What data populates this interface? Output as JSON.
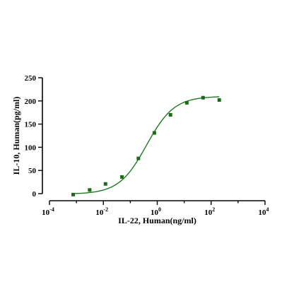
{
  "chart_data": {
    "type": "scatter",
    "xlabel": "IL-22, Human(ng/ml)",
    "ylabel": "IL-10, Human(pg/ml)",
    "x_scale": "log",
    "xlim": [
      0.0001,
      10000
    ],
    "ylim": [
      0,
      250
    ],
    "grid": false,
    "x_ticks": [
      {
        "base": "10",
        "exp": "-4",
        "value": 0.0001
      },
      {
        "base": "10",
        "exp": "-2",
        "value": 0.01
      },
      {
        "base": "10",
        "exp": "0",
        "value": 1
      },
      {
        "base": "10",
        "exp": "2",
        "value": 100
      },
      {
        "base": "10",
        "exp": "4",
        "value": 10000
      }
    ],
    "y_ticks": [
      "0",
      "50",
      "100",
      "150",
      "200",
      "250"
    ],
    "colors": {
      "points": "#1a6b1a",
      "curve": "#1f7a1f",
      "axes": "#000000"
    },
    "series": [
      {
        "points": [
          {
            "x": 0.00076,
            "y": -2
          },
          {
            "x": 0.0031,
            "y": 8
          },
          {
            "x": 0.012,
            "y": 21
          },
          {
            "x": 0.049,
            "y": 36
          },
          {
            "x": 0.2,
            "y": 76
          },
          {
            "x": 0.78,
            "y": 131
          },
          {
            "x": 3.1,
            "y": 170
          },
          {
            "x": 12.5,
            "y": 196
          },
          {
            "x": 50,
            "y": 207
          },
          {
            "x": 200,
            "y": 202
          }
        ],
        "fit": {
          "bottom": -1,
          "top": 210,
          "ec50": 0.4,
          "hill": 0.85,
          "x_from": 0.00076,
          "x_to": 200
        }
      }
    ]
  }
}
